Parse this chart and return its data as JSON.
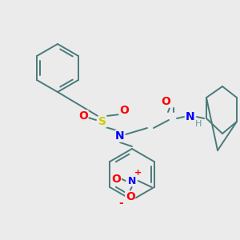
{
  "bg_color": "#ebebeb",
  "bond_color": "#4a7a7a",
  "atom_colors": {
    "O": "#ff0000",
    "N": "#0000ff",
    "S": "#cccc00",
    "H": "#6a9a9a",
    "C": "#4a7a7a"
  },
  "figsize": [
    3.0,
    3.0
  ],
  "dpi": 100
}
